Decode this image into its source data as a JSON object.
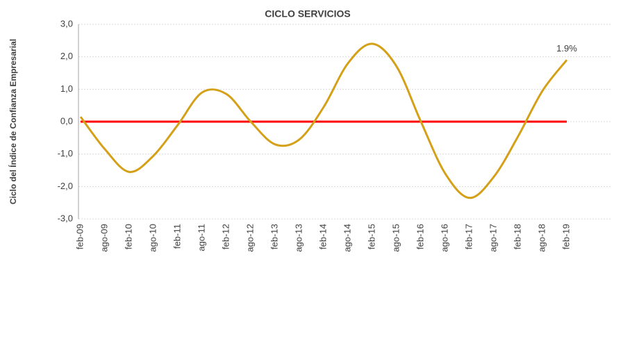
{
  "chart_data": {
    "type": "line",
    "title": "CICLO SERVICIOS",
    "y_label": "Ciclo del Índice de Confianza Empresarial",
    "categories": [
      "feb-09",
      "ago-09",
      "feb-10",
      "ago-10",
      "feb-11",
      "ago-11",
      "feb-12",
      "ago-12",
      "feb-13",
      "ago-13",
      "feb-14",
      "ago-14",
      "feb-15",
      "ago-15",
      "feb-16",
      "ago-16",
      "feb-17",
      "ago-17",
      "feb-18",
      "ago-18",
      "feb-19"
    ],
    "series": [
      {
        "color": "#d4a017",
        "values": [
          0.15,
          -0.85,
          -1.55,
          -1.05,
          -0.1,
          0.9,
          0.85,
          0.0,
          -0.7,
          -0.55,
          0.45,
          1.8,
          2.4,
          1.7,
          0.0,
          -1.6,
          -2.35,
          -1.7,
          -0.45,
          0.95,
          1.9
        ],
        "value_labels": [
          null,
          null,
          null,
          null,
          null,
          null,
          null,
          null,
          null,
          null,
          null,
          null,
          null,
          null,
          null,
          null,
          null,
          null,
          null,
          null,
          "1.9%"
        ]
      },
      {
        "color": "#ff0000",
        "values": [
          0,
          0,
          0,
          0,
          0,
          0,
          0,
          0,
          0,
          0,
          0,
          0,
          0,
          0,
          0,
          0,
          0,
          0,
          0,
          0,
          0
        ]
      }
    ],
    "ylim": [
      -3,
      3
    ],
    "yticks": [
      {
        "value": -3,
        "label": "-3,0"
      },
      {
        "value": -2,
        "label": "-2,0"
      },
      {
        "value": -1,
        "label": "-1,0"
      },
      {
        "value": 0,
        "label": "0,0"
      },
      {
        "value": 1,
        "label": "1,0"
      },
      {
        "value": 2,
        "label": "2,0"
      },
      {
        "value": 3,
        "label": "3,0"
      }
    ],
    "grid": true
  }
}
